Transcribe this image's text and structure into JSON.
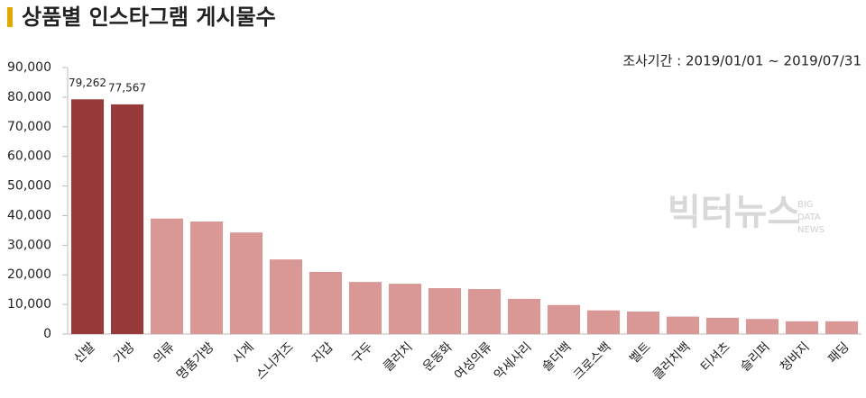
{
  "chart_data": {
    "type": "bar",
    "title": "상품별 인스타그램 게시물수",
    "subtitle": "조사기간 : 2019/01/01 ~ 2019/07/31",
    "watermark": {
      "text": "빅터뉴스",
      "sub": [
        "BIG",
        "DATA",
        "NEWS"
      ]
    },
    "categories": [
      "신발",
      "가방",
      "의류",
      "명품가방",
      "시계",
      "스니커즈",
      "지갑",
      "구두",
      "클러치",
      "운동화",
      "여성의류",
      "악세사리",
      "숄더백",
      "크로스백",
      "벨트",
      "클러치백",
      "티셔츠",
      "슬리퍼",
      "청바지",
      "패딩"
    ],
    "values": [
      79262,
      77567,
      39000,
      38000,
      34300,
      25200,
      21000,
      17600,
      17000,
      15500,
      15200,
      11900,
      9800,
      8000,
      7600,
      5900,
      5500,
      5100,
      4300,
      4300
    ],
    "value_labels": [
      "79,262",
      "77,567",
      null,
      null,
      null,
      null,
      null,
      null,
      null,
      null,
      null,
      null,
      null,
      null,
      null,
      null,
      null,
      null,
      null,
      null
    ],
    "colors": [
      "#963a3a",
      "#963a3a",
      "#d99796",
      "#d99796",
      "#d99796",
      "#d99796",
      "#d99796",
      "#d99796",
      "#d99796",
      "#d99796",
      "#d99796",
      "#d99796",
      "#d99796",
      "#d99796",
      "#d99796",
      "#d99796",
      "#d99796",
      "#d99796",
      "#d99796",
      "#d99796"
    ],
    "ylim": [
      0,
      90000
    ],
    "yticks": [
      0,
      {
        "value": 10000,
        "label": "10,000"
      },
      {
        "value": 20000,
        "label": "20,000"
      },
      {
        "value": 30000,
        "label": "30,000"
      },
      {
        "value": 40000,
        "label": "40,000"
      },
      {
        "value": 50000,
        "label": "50,000"
      },
      {
        "value": 60000,
        "label": "60,000"
      },
      {
        "value": 70000,
        "label": "70,000"
      },
      {
        "value": 80000,
        "label": "80,000"
      },
      {
        "value": 90000,
        "label": "90,000"
      }
    ],
    "grid": false
  }
}
